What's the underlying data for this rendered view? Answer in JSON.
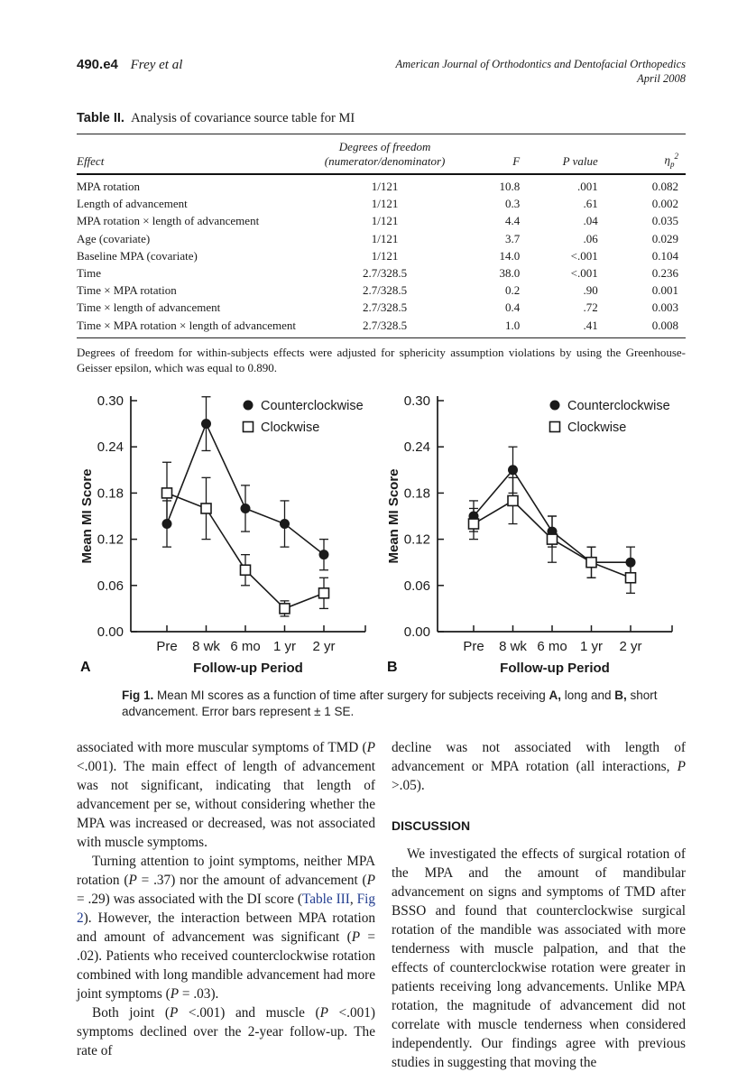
{
  "colors": {
    "ink": "#1a1a1a",
    "link": "#213c8f"
  },
  "header": {
    "page_number": "490.e4",
    "authors": "Frey et al",
    "journal_line1": "American Journal of Orthodontics and Dentofacial Orthopedics",
    "journal_line2": "April 2008"
  },
  "table": {
    "label": "Table II.",
    "title": "Analysis of covariance source table for MI",
    "columns": {
      "effect": "Effect",
      "df_line1": "Degrees of freedom",
      "df_line2": "(numerator/denominator)",
      "f": "F",
      "p": "P value",
      "eta_base": "η",
      "eta_sub": "p",
      "eta_sup": "2"
    },
    "rows": [
      [
        "MPA rotation",
        "1/121",
        "10.8",
        ".001",
        "0.082"
      ],
      [
        "Length of advancement",
        "1/121",
        "0.3",
        ".61",
        "0.002"
      ],
      [
        "MPA rotation × length of advancement",
        "1/121",
        "4.4",
        ".04",
        "0.035"
      ],
      [
        "Age (covariate)",
        "1/121",
        "3.7",
        ".06",
        "0.029"
      ],
      [
        "Baseline MPA (covariate)",
        "1/121",
        "14.0",
        "<.001",
        "0.104"
      ],
      [
        "Time",
        "2.7/328.5",
        "38.0",
        "<.001",
        "0.236"
      ],
      [
        "Time × MPA rotation",
        "2.7/328.5",
        "0.2",
        ".90",
        "0.001"
      ],
      [
        "Time × length of advancement",
        "2.7/328.5",
        "0.4",
        ".72",
        "0.003"
      ],
      [
        "Time × MPA rotation × length of advancement",
        "2.7/328.5",
        "1.0",
        ".41",
        "0.008"
      ]
    ],
    "footnote": "Degrees of freedom for within-subjects effects were adjusted for sphericity assumption violations by using the Greenhouse-Geisser epsilon, which was equal to 0.890."
  },
  "chart_data": [
    {
      "type": "line",
      "panel": "A",
      "categories": [
        "Pre",
        "8 wk",
        "6 mo",
        "1 yr",
        "2 yr"
      ],
      "series": [
        {
          "name": "Counterclockwise",
          "marker": "filled-circle",
          "values": [
            0.14,
            0.27,
            0.16,
            0.14,
            0.1
          ],
          "errors": [
            0.03,
            0.035,
            0.03,
            0.03,
            0.02
          ]
        },
        {
          "name": "Clockwise",
          "marker": "open-square",
          "values": [
            0.18,
            0.16,
            0.08,
            0.03,
            0.05
          ],
          "errors": [
            0.04,
            0.04,
            0.02,
            0.01,
            0.02
          ]
        }
      ],
      "xlabel": "Follow-up Period",
      "ylabel": "Mean MI Score",
      "ylim": [
        0,
        0.3
      ],
      "yticks": [
        0.0,
        0.06,
        0.12,
        0.18,
        0.24,
        0.3
      ],
      "grid": false,
      "legend_position": "top-right-inside",
      "error_bar_note": "± 1 SE"
    },
    {
      "type": "line",
      "panel": "B",
      "categories": [
        "Pre",
        "8 wk",
        "6 mo",
        "1 yr",
        "2 yr"
      ],
      "series": [
        {
          "name": "Counterclockwise",
          "marker": "filled-circle",
          "values": [
            0.15,
            0.21,
            0.13,
            0.09,
            0.09
          ],
          "errors": [
            0.02,
            0.03,
            0.02,
            0.02,
            0.02
          ]
        },
        {
          "name": "Clockwise",
          "marker": "open-square",
          "values": [
            0.14,
            0.17,
            0.12,
            0.09,
            0.07
          ],
          "errors": [
            0.02,
            0.03,
            0.03,
            0.02,
            0.02
          ]
        }
      ],
      "xlabel": "Follow-up Period",
      "ylabel": "Mean MI Score",
      "ylim": [
        0,
        0.3
      ],
      "yticks": [
        0.0,
        0.06,
        0.12,
        0.18,
        0.24,
        0.3
      ],
      "grid": false,
      "legend_position": "top-right-inside",
      "error_bar_note": "± 1 SE"
    }
  ],
  "figure": {
    "caption_segments": [
      {
        "t": "Fig 1.",
        "b": true
      },
      {
        "t": "  Mean MI scores as a function of time after surgery for subjects receiving "
      },
      {
        "t": "A,",
        "b": true
      },
      {
        "t": " long and "
      },
      {
        "t": "B,",
        "b": true
      },
      {
        "t": " short advancement. Error bars represent ± 1 SE."
      }
    ]
  },
  "body": {
    "left_paragraphs": [
      {
        "indent": false,
        "segments": [
          {
            "t": "associated with more muscular symptoms of TMD ("
          },
          {
            "t": "P",
            "i": true
          },
          {
            "t": " <.001). The main effect of length of advancement was not significant, indicating that length of advancement per se, without considering whether the MPA was increased or decreased, was not associated with muscle symptoms."
          }
        ]
      },
      {
        "indent": true,
        "segments": [
          {
            "t": "Turning attention to joint symptoms, neither MPA rotation ("
          },
          {
            "t": "P",
            "i": true
          },
          {
            "t": " = .37) nor the amount of advancement ("
          },
          {
            "t": "P",
            "i": true
          },
          {
            "t": " = .29) was associated with the DI score ("
          },
          {
            "t": "Table III",
            "link": true
          },
          {
            "t": ", "
          },
          {
            "t": "Fig 2",
            "link": true
          },
          {
            "t": "). However, the interaction between MPA rotation and amount of advancement was significant ("
          },
          {
            "t": "P",
            "i": true
          },
          {
            "t": " = .02). Patients who received counterclockwise rotation combined with long mandible advancement had more joint symptoms ("
          },
          {
            "t": "P",
            "i": true
          },
          {
            "t": " = .03)."
          }
        ]
      },
      {
        "indent": true,
        "segments": [
          {
            "t": "Both joint ("
          },
          {
            "t": "P",
            "i": true
          },
          {
            "t": " <.001) and muscle ("
          },
          {
            "t": "P",
            "i": true
          },
          {
            "t": " <.001) symptoms declined over the 2-year follow-up. The rate of"
          }
        ]
      }
    ],
    "right_paragraph_top": {
      "segments": [
        {
          "t": "decline was not associated with length of advancement or MPA rotation (all interactions, "
        },
        {
          "t": "P",
          "i": true
        },
        {
          "t": " >.05)."
        }
      ]
    },
    "discussion_heading": "DISCUSSION",
    "discussion_paragraph": {
      "segments": [
        {
          "t": "We investigated the effects of surgical rotation of the MPA and the amount of mandibular advancement on signs and symptoms of TMD after BSSO and found that counterclockwise surgical rotation of the mandible was associated with more tenderness with muscle palpation, and that the effects of counterclockwise rotation were greater in patients receiving long advancements. Unlike MPA rotation, the magnitude of advancement did not correlate with muscle tenderness when considered independently. Our findings agree with previous studies in suggesting that moving the"
        }
      ]
    }
  }
}
